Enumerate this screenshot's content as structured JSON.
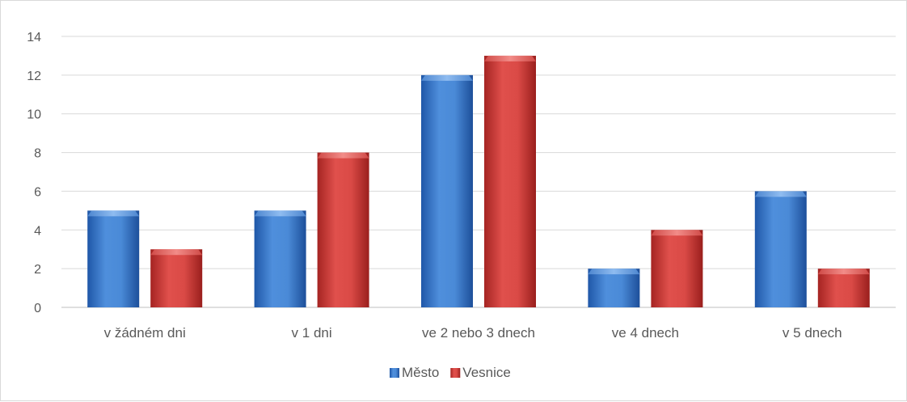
{
  "chart_data": {
    "type": "bar",
    "categories": [
      "v žádném dni",
      "v 1 dni",
      "ve 2 nebo 3 dnech",
      "ve 4 dnech",
      "v 5 dnech"
    ],
    "series": [
      {
        "name": "Město",
        "values": [
          5,
          5,
          12,
          2,
          6
        ],
        "color": "#3a78c9"
      },
      {
        "name": "Vesnice",
        "values": [
          3,
          8,
          13,
          4,
          2
        ],
        "color": "#cc3a37"
      }
    ],
    "ylim": [
      0,
      14
    ],
    "yticks": [
      0,
      2,
      4,
      6,
      8,
      10,
      12,
      14
    ],
    "grid": true,
    "legend_position": "bottom"
  }
}
